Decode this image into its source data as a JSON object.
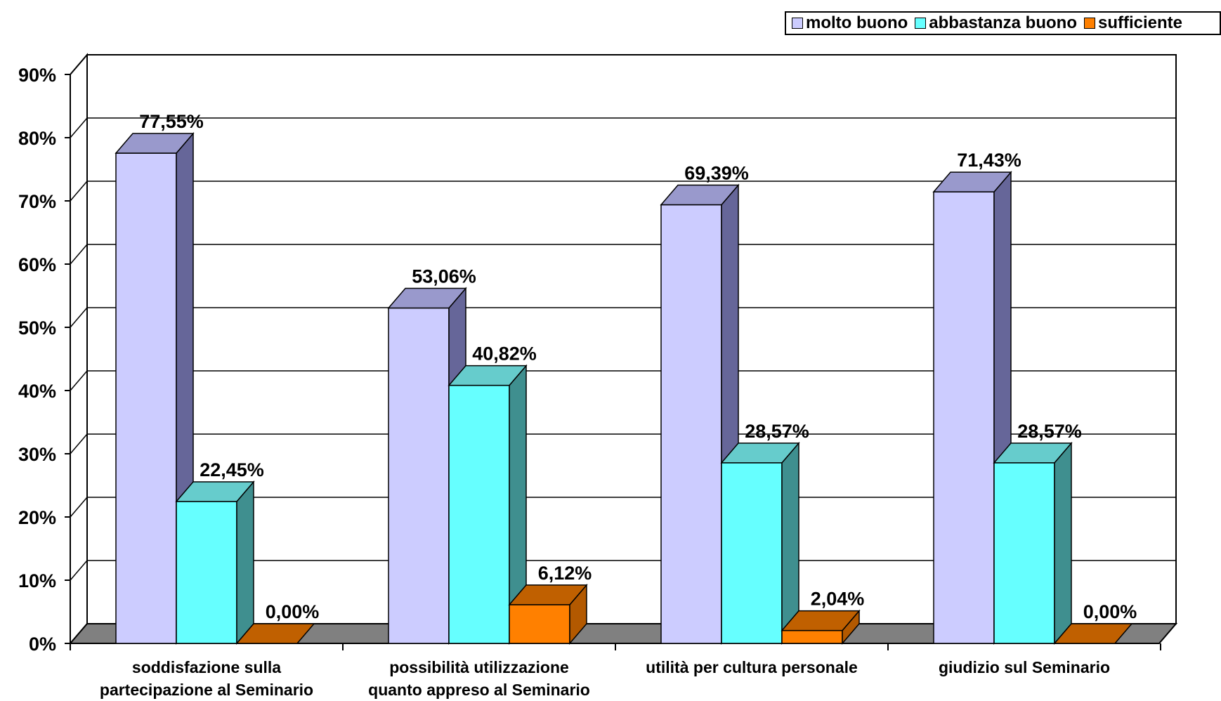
{
  "chart_data": {
    "type": "bar",
    "categories": [
      [
        "soddisfazione sulla",
        "partecipazione al Seminario"
      ],
      [
        "possibilità utilizzazione",
        "quanto appreso al Seminario"
      ],
      [
        "utilità per cultura personale"
      ],
      [
        "giudizio sul Seminario"
      ]
    ],
    "series": [
      {
        "name": "molto buono",
        "values": [
          77.55,
          53.06,
          69.39,
          71.43
        ],
        "labels": [
          "77,55%",
          "53,06%",
          "69,39%",
          "71,43%"
        ],
        "color": "#CCCCFF",
        "side_color": "#666699",
        "top_color": "#9999CC"
      },
      {
        "name": "abbastanza buono",
        "values": [
          22.45,
          40.82,
          28.57,
          28.57
        ],
        "labels": [
          "22,45%",
          "40,82%",
          "28,57%",
          "28,57%"
        ],
        "color": "#66FFFF",
        "side_color": "#3F8F8F",
        "top_color": "#66CCCC"
      },
      {
        "name": "sufficiente",
        "values": [
          0.0,
          6.12,
          2.04,
          0.0
        ],
        "labels": [
          "0,00%",
          "6,12%",
          "2,04%",
          "0,00%"
        ],
        "color": "#FF8000",
        "side_color": "#B35900",
        "top_color": "#C06000"
      }
    ],
    "yticks": [
      "0%",
      "10%",
      "20%",
      "30%",
      "40%",
      "50%",
      "60%",
      "70%",
      "80%",
      "90%"
    ],
    "ylim": [
      0,
      90
    ],
    "legend_position": "top-right",
    "grid": true,
    "three_d": true
  },
  "colors": {
    "wall": "#ffffff",
    "floor": "#808080",
    "gridline": "#000000"
  }
}
